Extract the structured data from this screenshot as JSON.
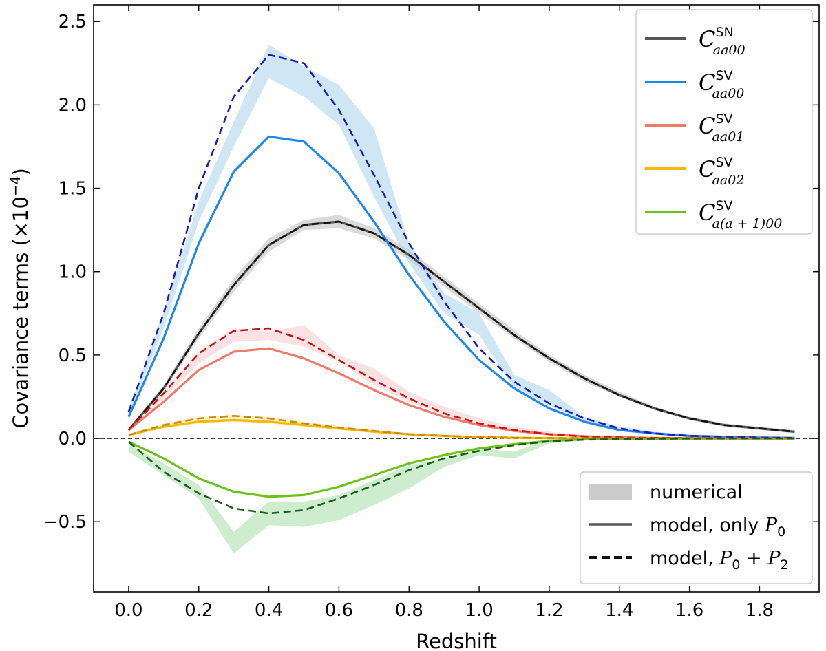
{
  "chart_data": {
    "type": "line",
    "xlabel": "Redshift",
    "ylabel": "Covariance terms (×10⁻⁴)",
    "ylabel_parts": {
      "prefix": "Covariance terms (×10",
      "exp": "−4",
      "suffix": ")"
    },
    "xlim": [
      -0.1,
      1.97
    ],
    "ylim": [
      -0.92,
      2.6
    ],
    "xticks": [
      0.0,
      0.2,
      0.4,
      0.6,
      0.8,
      1.0,
      1.2,
      1.4,
      1.6,
      1.8
    ],
    "xtick_labels": [
      "0.0",
      "0.2",
      "0.4",
      "0.6",
      "0.8",
      "1.0",
      "1.2",
      "1.4",
      "1.6",
      "1.8"
    ],
    "yticks": [
      -0.5,
      0.0,
      0.5,
      1.0,
      1.5,
      2.0,
      2.5
    ],
    "ytick_labels": [
      "−0.5",
      "0.0",
      "0.5",
      "1.0",
      "1.5",
      "2.0",
      "2.5"
    ],
    "zero_line": true,
    "grid": false,
    "x": [
      0.0,
      0.1,
      0.2,
      0.3,
      0.4,
      0.5,
      0.6,
      0.7,
      0.8,
      0.9,
      1.0,
      1.1,
      1.2,
      1.3,
      1.4,
      1.5,
      1.6,
      1.7,
      1.8,
      1.9
    ],
    "series": [
      {
        "key": "sn00",
        "label_main": "C",
        "label_sup": "SN",
        "label_sub": "aa00",
        "color": "#555555",
        "model_color": "#111111",
        "band_color": "#bbbbbb",
        "model_p0": [
          0.05,
          0.3,
          0.63,
          0.92,
          1.16,
          1.28,
          1.3,
          1.23,
          1.1,
          0.94,
          0.78,
          0.62,
          0.48,
          0.36,
          0.26,
          0.18,
          0.12,
          0.08,
          0.06,
          0.04
        ],
        "model_p0p2": [
          0.05,
          0.3,
          0.63,
          0.92,
          1.16,
          1.28,
          1.3,
          1.23,
          1.1,
          0.94,
          0.78,
          0.62,
          0.48,
          0.36,
          0.26,
          0.18,
          0.12,
          0.08,
          0.06,
          0.04
        ],
        "numerical_low": [
          0.04,
          0.28,
          0.6,
          0.88,
          1.12,
          1.25,
          1.26,
          1.2,
          1.07,
          0.91,
          0.75,
          0.6,
          0.46,
          0.34,
          0.25,
          0.17,
          0.11,
          0.07,
          0.05,
          0.03
        ],
        "numerical_high": [
          0.06,
          0.32,
          0.66,
          0.96,
          1.2,
          1.31,
          1.34,
          1.26,
          1.13,
          0.97,
          0.81,
          0.65,
          0.5,
          0.38,
          0.28,
          0.19,
          0.13,
          0.09,
          0.07,
          0.05
        ]
      },
      {
        "key": "sv00",
        "label_main": "C",
        "label_sup": "SV",
        "label_sub": "aa00",
        "color": "#1e88e5",
        "model_color": "#1a1ab5",
        "band_color": "#a8d4ec",
        "model_p0": [
          0.13,
          0.6,
          1.17,
          1.6,
          1.81,
          1.78,
          1.59,
          1.3,
          0.98,
          0.7,
          0.47,
          0.3,
          0.18,
          0.1,
          0.05,
          0.03,
          0.015,
          0.01,
          0.005,
          0.003
        ],
        "model_p0p2": [
          0.16,
          0.75,
          1.5,
          2.05,
          2.3,
          2.25,
          1.97,
          1.58,
          1.17,
          0.82,
          0.54,
          0.34,
          0.21,
          0.12,
          0.06,
          0.03,
          0.015,
          0.01,
          0.005,
          0.003
        ],
        "numerical_low": [
          0.13,
          0.66,
          1.3,
          1.75,
          2.16,
          2.05,
          1.88,
          1.45,
          1.05,
          0.75,
          0.62,
          0.3,
          0.2,
          0.1,
          0.05,
          0.03,
          0.015,
          0.01,
          0.005,
          0.003
        ],
        "numerical_high": [
          0.17,
          0.76,
          1.42,
          1.9,
          2.36,
          2.23,
          2.12,
          1.86,
          1.17,
          0.87,
          0.75,
          0.38,
          0.29,
          0.13,
          0.07,
          0.04,
          0.02,
          0.015,
          0.008,
          0.005
        ]
      },
      {
        "key": "sv01",
        "label_main": "C",
        "label_sup": "SV",
        "label_sub": "aa01",
        "color": "#f07a6a",
        "model_color": "#c01818",
        "band_color": "#f5c8cc",
        "model_p0": [
          0.05,
          0.22,
          0.41,
          0.52,
          0.54,
          0.48,
          0.39,
          0.29,
          0.2,
          0.13,
          0.08,
          0.045,
          0.025,
          0.012,
          0.006,
          0.003,
          0.0015,
          0.0008,
          0.0005,
          0.0003
        ],
        "model_p0p2": [
          0.05,
          0.27,
          0.51,
          0.645,
          0.66,
          0.59,
          0.47,
          0.35,
          0.24,
          0.15,
          0.09,
          0.05,
          0.025,
          0.012,
          0.006,
          0.003,
          0.0015,
          0.0008,
          0.0005,
          0.0003
        ],
        "numerical_low": [
          0.04,
          0.24,
          0.45,
          0.58,
          0.59,
          0.55,
          0.46,
          0.32,
          0.22,
          0.14,
          0.08,
          0.04,
          0.02,
          0.01,
          0.005,
          0.002,
          0.001,
          0.0005,
          0.0003,
          0.0002
        ],
        "numerical_high": [
          0.06,
          0.28,
          0.52,
          0.66,
          0.64,
          0.68,
          0.5,
          0.42,
          0.28,
          0.19,
          0.12,
          0.07,
          0.04,
          0.02,
          0.01,
          0.005,
          0.003,
          0.0015,
          0.001,
          0.0005
        ]
      },
      {
        "key": "sv02",
        "label_main": "C",
        "label_sup": "SV",
        "label_sub": "aa02",
        "color": "#f5b800",
        "model_color": "#c98a00",
        "band_color": "#fae3a0",
        "model_p0": [
          0.02,
          0.07,
          0.1,
          0.11,
          0.1,
          0.08,
          0.06,
          0.04,
          0.025,
          0.015,
          0.008,
          0.004,
          0.002,
          0.001,
          0.0005,
          0.0003,
          0.0002,
          0.0001,
          0.0001,
          0.0001
        ],
        "model_p0p2": [
          0.02,
          0.08,
          0.12,
          0.135,
          0.12,
          0.09,
          0.065,
          0.045,
          0.025,
          0.015,
          0.008,
          0.004,
          0.002,
          0.001,
          0.0005,
          0.0003,
          0.0002,
          0.0001,
          0.0001,
          0.0001
        ],
        "numerical_low": [
          0.015,
          0.06,
          0.09,
          0.1,
          0.09,
          0.07,
          0.05,
          0.035,
          0.02,
          0.012,
          0.006,
          0.003,
          0.0015,
          0.0008,
          0.0004,
          0.0002,
          0.0001,
          0.0001,
          0.0001,
          0.0001
        ],
        "numerical_high": [
          0.025,
          0.09,
          0.13,
          0.14,
          0.13,
          0.1,
          0.075,
          0.05,
          0.03,
          0.02,
          0.01,
          0.005,
          0.0025,
          0.0012,
          0.0006,
          0.0004,
          0.0003,
          0.0002,
          0.0001,
          0.0001
        ]
      },
      {
        "key": "sv_a1_00",
        "label_main": "C",
        "label_sup": "SV",
        "label_sub": "a(a + 1)00",
        "color": "#6cc218",
        "model_color": "#1a5e1a",
        "band_color": "#a6dca6",
        "model_p0": [
          -0.02,
          -0.12,
          -0.24,
          -0.32,
          -0.35,
          -0.34,
          -0.29,
          -0.22,
          -0.15,
          -0.1,
          -0.06,
          -0.035,
          -0.015,
          -0.006,
          -0.003,
          -0.0015,
          -0.0008,
          -0.0004,
          -0.0002,
          -0.0001
        ],
        "model_p0p2": [
          -0.02,
          -0.2,
          -0.33,
          -0.42,
          -0.45,
          -0.43,
          -0.36,
          -0.28,
          -0.19,
          -0.12,
          -0.075,
          -0.04,
          -0.018,
          -0.008,
          -0.004,
          -0.002,
          -0.001,
          -0.0005,
          -0.0003,
          -0.0001
        ],
        "numerical_low": [
          -0.08,
          -0.22,
          -0.36,
          -0.69,
          -0.52,
          -0.53,
          -0.49,
          -0.4,
          -0.3,
          -0.17,
          -0.1,
          -0.12,
          -0.03,
          -0.01,
          -0.005,
          -0.002,
          -0.001,
          -0.0005,
          -0.0003,
          -0.0001
        ],
        "numerical_high": [
          -0.03,
          -0.15,
          -0.28,
          -0.56,
          -0.38,
          -0.38,
          -0.34,
          -0.25,
          -0.16,
          -0.12,
          -0.06,
          -0.08,
          0.0,
          0.0,
          0.0,
          0.0,
          0.0,
          0.0,
          0.0,
          0.0
        ]
      }
    ],
    "legend_style": {
      "placement": "bottom-right",
      "items": [
        {
          "kind": "band",
          "color": "#cccccc",
          "label": "numerical"
        },
        {
          "kind": "solid",
          "color": "#555555",
          "label_text": "model, only ",
          "label_math": "P",
          "label_sub": "0"
        },
        {
          "kind": "dashed",
          "color": "#111111",
          "label_text": "model, ",
          "label_math": "P",
          "label_sub": "0",
          "label_extra": " + ",
          "label_math2": "P",
          "label_sub2": "2"
        }
      ]
    },
    "legend_series_placement": "top-right"
  }
}
